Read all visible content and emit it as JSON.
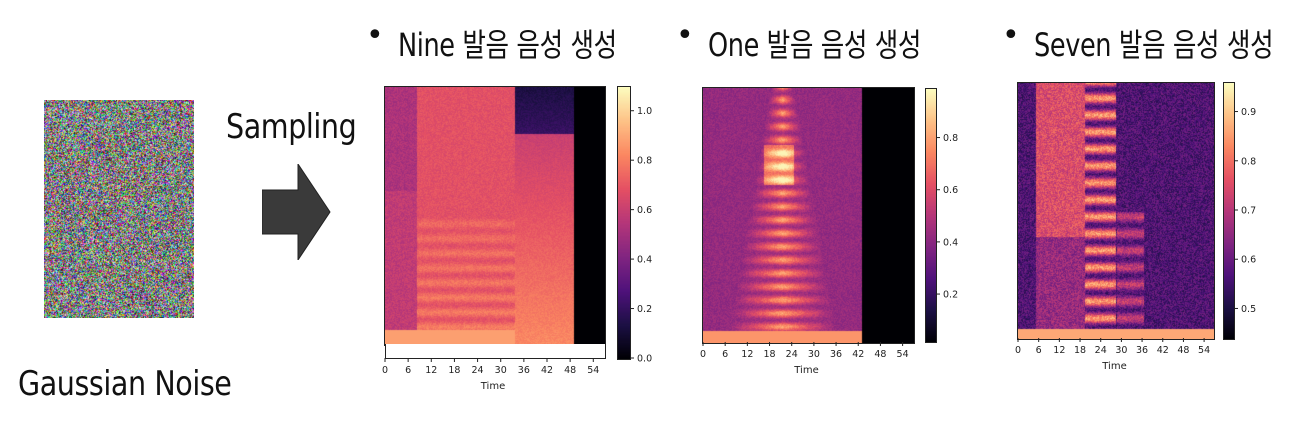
{
  "noise": {
    "label": "Gaussian Noise"
  },
  "arrow": {
    "label": "Sampling"
  },
  "panels": [
    {
      "title": "Nine 발음 음성 생성",
      "xlabel": "Time",
      "xticks": [
        "0",
        "6",
        "12",
        "18",
        "24",
        "30",
        "36",
        "42",
        "48",
        "54"
      ],
      "colorbar_ticks": [
        "1.0",
        "0.8",
        "0.6",
        "0.4",
        "0.2",
        "0.0"
      ]
    },
    {
      "title": "One 발음 음성 생성",
      "xlabel": "Time",
      "xticks": [
        "0",
        "6",
        "12",
        "18",
        "24",
        "30",
        "36",
        "42",
        "48",
        "54"
      ],
      "colorbar_ticks": [
        "0.8",
        "0.6",
        "0.4",
        "0.2"
      ]
    },
    {
      "title": "Seven 발음 음성 생성",
      "xlabel": "Time",
      "xticks": [
        "0",
        "6",
        "12",
        "18",
        "24",
        "30",
        "36",
        "42",
        "48",
        "54"
      ],
      "colorbar_ticks": [
        "0.9",
        "0.8",
        "0.7",
        "0.6",
        "0.5"
      ]
    }
  ],
  "colors": {
    "arrow_fill": "#3a3a3a",
    "colormap": "magma"
  }
}
